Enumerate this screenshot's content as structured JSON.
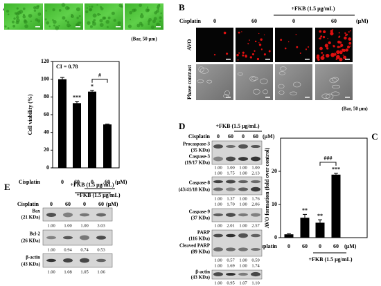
{
  "panel_a": {
    "label": "A",
    "scale_note": "(Bar, 50 μm)"
  },
  "panel_b": {
    "label": "B",
    "treatment_label": "Cisplatin",
    "doses": [
      "0",
      "60",
      "0",
      "60"
    ],
    "unit_label": "(μM)",
    "group_label": "+FKB (1.5 μg/mL)",
    "rows": [
      "AVO",
      "Phase contrast"
    ],
    "scale_note": "(Bar, 50 μm)"
  },
  "panel_c": {
    "label": "C"
  },
  "panel_d": {
    "label": "D",
    "treatment_label": "Cisplatin",
    "doses": [
      "0",
      "60",
      "0",
      "60"
    ],
    "unit_label": "(μM)",
    "group_label": "+FKB (1.5 μg/mL)",
    "blots": [
      {
        "labels": [
          "Procaspase-3",
          "(35 KDa)",
          "Caspase-3",
          "(19/17 KDa)"
        ],
        "quant": [
          [
            "1.00",
            "1.00",
            "1.00",
            "1.00"
          ],
          [
            "1.00",
            "1.75",
            "1.00",
            "2.13"
          ]
        ]
      },
      {
        "labels": [
          "Caspase-8",
          "(43/41/18 KDa)"
        ],
        "quant": [
          [
            "1.00",
            "1.37",
            "1.00",
            "1.76"
          ],
          [
            "1.00",
            "1.70",
            "1.00",
            "2.06"
          ]
        ]
      },
      {
        "labels": [
          "Caspase-9",
          "(37 KDa)"
        ],
        "quant": [
          [
            "1.00",
            "2.01",
            "1.00",
            "2.57"
          ]
        ]
      },
      {
        "labels": [
          "PARP",
          "(116 KDa)",
          "Cleaved PARP",
          "(89 KDa)"
        ],
        "quant": [
          [
            "1.00",
            "0.57",
            "1.00",
            "0.59"
          ],
          [
            "1.00",
            "1.69",
            "1.00",
            "1.74"
          ]
        ]
      },
      {
        "labels": [
          "β-actin",
          "(43 KDa)"
        ],
        "quant": [
          [
            "1.00",
            "0.95",
            "1.07",
            "1.10"
          ]
        ]
      }
    ]
  },
  "panel_e": {
    "label": "E",
    "treatment_label": "Cisplatin",
    "doses": [
      "0",
      "60",
      "0",
      "60"
    ],
    "unit_label": "(μM)",
    "group_label": "+FKB (1.5 μg/mL)",
    "blots": [
      {
        "labels": [
          "Bax",
          "(21 KDa)"
        ],
        "quant": [
          [
            "1.00",
            "1.00",
            "1.00",
            "3.03"
          ]
        ]
      },
      {
        "labels": [
          "Bcl-2",
          "(26 KDa)"
        ],
        "quant": [
          [
            "1.00",
            "0.94",
            "0.74",
            "0.53"
          ]
        ]
      },
      {
        "labels": [
          "β-actin",
          "(43 KDa)"
        ],
        "quant": [
          [
            "1.00",
            "1.08",
            "1.05",
            "1.06"
          ]
        ]
      }
    ]
  },
  "chart_data": [
    {
      "type": "bar",
      "ylabel": "Cell viability (%)",
      "treatment_label": "Cisplatin",
      "categories": [
        "0",
        "60",
        "0",
        "60"
      ],
      "unit_label": "(μM)",
      "group_label": "+FKB (1.5 μg/mL)",
      "values": [
        100,
        73,
        86,
        49
      ],
      "errors": [
        2,
        2,
        1.5,
        0.5
      ],
      "color": "#000000",
      "ylim": [
        0,
        120
      ],
      "yticks": [
        0,
        20,
        40,
        60,
        80,
        100,
        120
      ],
      "annotation": "CI = 0.78",
      "significance": [
        null,
        "***",
        "*",
        null
      ],
      "bracket_label": "#"
    },
    {
      "type": "bar",
      "ylabel": "AVO formation (fold over control)",
      "treatment_label": "Cisplatin",
      "categories": [
        "0",
        "60",
        "0",
        "60"
      ],
      "unit_label": "(μM)",
      "group_label": "+FKB (1.5 μg/mL)",
      "values": [
        1,
        6,
        4.5,
        19
      ],
      "errors": [
        0.2,
        1,
        0.9,
        0.4
      ],
      "color": "#000000",
      "ylim": [
        0,
        30
      ],
      "yticks": [
        0,
        10,
        20
      ],
      "significance": [
        null,
        "**",
        "**",
        "***"
      ],
      "bracket_label": "###"
    }
  ]
}
